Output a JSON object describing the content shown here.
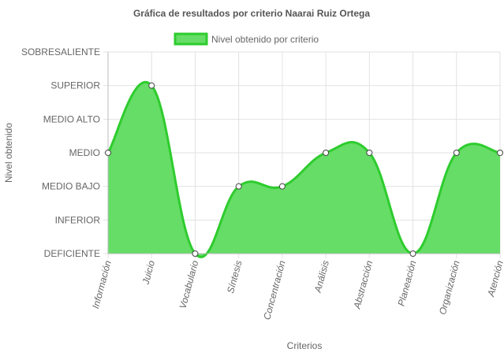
{
  "chart_data": {
    "type": "area",
    "title": "Gráfica de resultados por criterio Naarai Ruiz Ortega",
    "xlabel": "Criterios",
    "ylabel": "Nivel obtenido",
    "y_levels": [
      "DEFICIENTE",
      "INFERIOR",
      "MEDIO BAJO",
      "MEDIO",
      "MEDIO ALTO",
      "SUPERIOR",
      "SOBRESALIENTE"
    ],
    "categories": [
      "Información",
      "Juicio",
      "Vocabulario",
      "Síntesis",
      "Concentración",
      "Análisis",
      "Abstracción",
      "Planeación",
      "Organización",
      "Atención"
    ],
    "series": [
      {
        "name": "Nivel obtenido por criterio",
        "values": [
          "MEDIO",
          "SUPERIOR",
          "DEFICIENTE",
          "MEDIO BAJO",
          "MEDIO BAJO",
          "MEDIO",
          "MEDIO",
          "DEFICIENTE",
          "MEDIO",
          "MEDIO"
        ]
      }
    ],
    "legend_position": "top",
    "grid": true,
    "colors": {
      "fill": "#66dd66",
      "line": "#2ecc2e",
      "grid": "#e2e2e2",
      "axis": "#bbbbbb"
    }
  }
}
